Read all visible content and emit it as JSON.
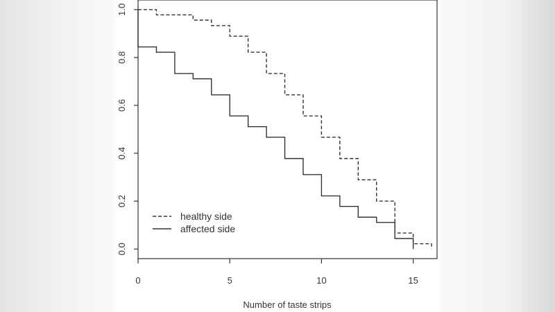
{
  "chart_data": {
    "type": "line",
    "title": "",
    "xlabel": "Number of taste strips",
    "ylabel": "",
    "xlim": [
      0,
      16.3
    ],
    "ylim": [
      -0.04,
      1.04
    ],
    "xticks": [
      0,
      5,
      10,
      15
    ],
    "yticks": [
      0.0,
      0.2,
      0.4,
      0.6,
      0.8,
      1.0
    ],
    "xtick_labels": [
      "0",
      "5",
      "10",
      "15"
    ],
    "ytick_labels": [
      "0.0",
      "0.2",
      "0.4",
      "0.6",
      "0.8",
      "1.0"
    ],
    "grid": false,
    "legend_position": "bottom-left",
    "series": [
      {
        "name": "healthy side",
        "style": "dashed",
        "color": "#333333",
        "x": [
          0,
          1,
          2,
          3,
          4,
          5,
          6,
          7,
          8,
          9,
          10,
          11,
          12,
          13,
          14,
          15,
          16
        ],
        "y": [
          1.0,
          0.978,
          0.978,
          0.956,
          0.933,
          0.889,
          0.822,
          0.733,
          0.644,
          0.556,
          0.467,
          0.378,
          0.289,
          0.2,
          0.067,
          0.022,
          0.0
        ]
      },
      {
        "name": "affected side",
        "style": "solid",
        "color": "#333333",
        "x": [
          0,
          1,
          2,
          3,
          4,
          5,
          6,
          7,
          8,
          9,
          10,
          11,
          12,
          13,
          14,
          15
        ],
        "y": [
          0.844,
          0.822,
          0.733,
          0.711,
          0.644,
          0.556,
          0.511,
          0.467,
          0.378,
          0.311,
          0.222,
          0.178,
          0.133,
          0.111,
          0.044,
          0.0
        ]
      }
    ]
  }
}
